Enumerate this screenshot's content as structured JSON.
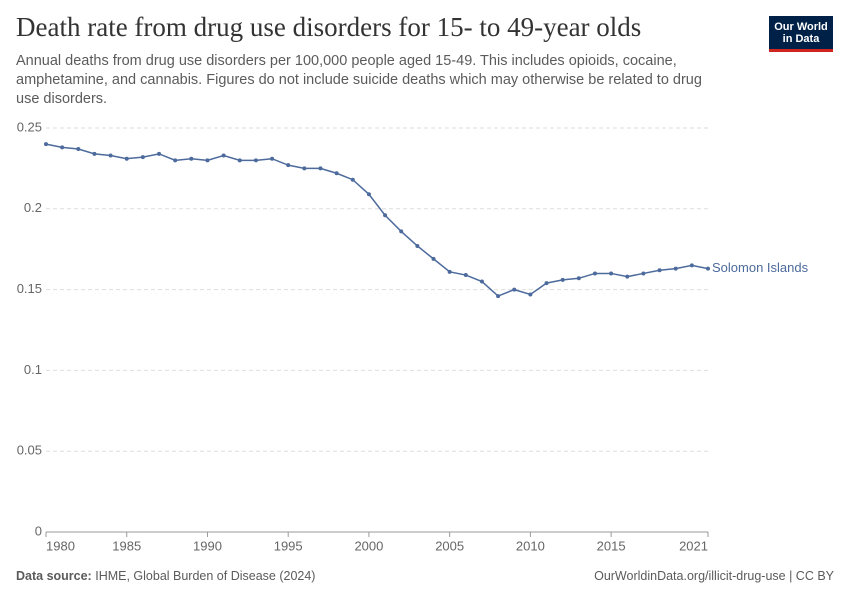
{
  "chart_data": {
    "type": "line",
    "title": "Death rate from drug use disorders for 15- to 49-year olds",
    "subtitle": "Annual deaths from drug use disorders per 100,000 people aged 15-49. This includes opioids, cocaine, amphetamine, and cannabis. Figures do not include suicide deaths which may otherwise be related to drug use disorders.",
    "logo": [
      "Our World",
      "in Data"
    ],
    "source_label": "Data source:",
    "source": "IHME, Global Burden of Disease (2024)",
    "license": "OurWorldinData.org/illicit-drug-use | CC BY",
    "x": [
      1980,
      1981,
      1982,
      1983,
      1984,
      1985,
      1986,
      1987,
      1988,
      1989,
      1990,
      1991,
      1992,
      1993,
      1994,
      1995,
      1996,
      1997,
      1998,
      1999,
      2000,
      2001,
      2002,
      2003,
      2004,
      2005,
      2006,
      2007,
      2008,
      2009,
      2010,
      2011,
      2012,
      2013,
      2014,
      2015,
      2016,
      2017,
      2018,
      2019,
      2020,
      2021
    ],
    "series": [
      {
        "name": "Solomon Islands",
        "color": "#4c6a9c",
        "values": [
          0.24,
          0.238,
          0.237,
          0.234,
          0.233,
          0.231,
          0.232,
          0.234,
          0.23,
          0.231,
          0.23,
          0.233,
          0.23,
          0.23,
          0.231,
          0.227,
          0.225,
          0.225,
          0.222,
          0.218,
          0.209,
          0.196,
          0.186,
          0.177,
          0.169,
          0.161,
          0.159,
          0.155,
          0.146,
          0.15,
          0.147,
          0.154,
          0.156,
          0.157,
          0.16,
          0.16,
          0.158,
          0.16,
          0.162,
          0.163,
          0.165,
          0.163
        ]
      }
    ],
    "xlim": [
      1980,
      2021
    ],
    "xticks": [
      1980,
      1985,
      1990,
      1995,
      2000,
      2005,
      2010,
      2015,
      2021
    ],
    "ylim": [
      0,
      0.25
    ],
    "yticks": [
      0,
      0.05,
      0.1,
      0.15,
      0.2,
      0.25
    ],
    "grid": true
  }
}
